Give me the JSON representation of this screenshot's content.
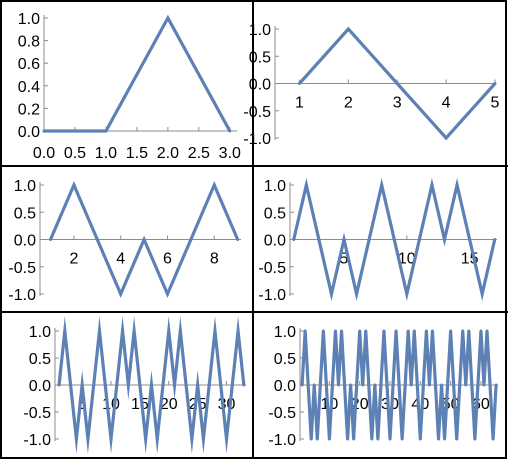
{
  "colors": {
    "line": "#5e81b5",
    "axis": "#8c8c8c",
    "border": "#000000",
    "text": "#000000"
  },
  "chart_data": [
    {
      "type": "line",
      "x": [
        0,
        1,
        2,
        3
      ],
      "y": [
        0,
        0,
        1,
        0
      ],
      "xlim": [
        0,
        3.1
      ],
      "ylim": [
        0,
        1
      ],
      "xticks": [
        0.0,
        0.5,
        1.0,
        1.5,
        2.0,
        2.5,
        3.0
      ],
      "xtick_labels": [
        "0.0",
        "0.5",
        "1.0",
        "1.5",
        "2.0",
        "2.5",
        "3.0"
      ],
      "yticks": [
        0.0,
        0.2,
        0.4,
        0.6,
        0.8,
        1.0
      ],
      "ytick_labels": [
        "0.0",
        "0.2",
        "0.4",
        "0.6",
        "0.8",
        "1.0"
      ]
    },
    {
      "type": "line",
      "x": [
        1,
        2,
        3,
        4,
        5
      ],
      "y": [
        0,
        1,
        0,
        -1,
        0
      ],
      "xlim": [
        0.5,
        5
      ],
      "ylim": [
        -1,
        1
      ],
      "xticks": [
        1,
        2,
        3,
        4,
        5
      ],
      "xtick_labels": [
        "1",
        "2",
        "3",
        "4",
        "5"
      ],
      "yticks": [
        -1.0,
        -0.5,
        0.0,
        0.5,
        1.0
      ],
      "ytick_labels": [
        "-1.0",
        "-0.5",
        "0.0",
        "0.5",
        "1.0"
      ]
    },
    {
      "type": "line",
      "x": [
        1,
        2,
        3,
        4,
        5,
        6,
        7,
        8,
        9
      ],
      "y": [
        0,
        1,
        0,
        -1,
        0,
        -1,
        0,
        1,
        0
      ],
      "xlim": [
        0.55,
        9.1
      ],
      "ylim": [
        -1,
        1
      ],
      "xticks": [
        2,
        4,
        6,
        8
      ],
      "xtick_labels": [
        "2",
        "4",
        "6",
        "8"
      ],
      "yticks": [
        -1.0,
        -0.5,
        0.0,
        0.5,
        1.0
      ],
      "ytick_labels": [
        "-1.0",
        "-0.5",
        "0.0",
        "0.5",
        "1.0"
      ]
    },
    {
      "type": "line",
      "x": [
        1,
        2,
        3,
        4,
        5,
        6,
        7,
        8,
        9,
        10,
        11,
        12,
        13,
        14,
        15,
        16,
        17
      ],
      "y": [
        0,
        1,
        0,
        -1,
        0,
        -1,
        0,
        1,
        0,
        -1,
        0,
        1,
        0,
        1,
        0,
        -1,
        0
      ],
      "xlim": [
        0.7,
        17.1
      ],
      "ylim": [
        -1,
        1
      ],
      "xticks": [
        5,
        10,
        15
      ],
      "xtick_labels": [
        "5",
        "10",
        "15"
      ],
      "yticks": [
        -1.0,
        -0.5,
        0.0,
        0.5,
        1.0
      ],
      "ytick_labels": [
        "-1.0",
        "-0.5",
        "0.0",
        "0.5",
        "1.0"
      ]
    },
    {
      "type": "line",
      "x": [
        1,
        2,
        3,
        4,
        5,
        6,
        7,
        8,
        9,
        10,
        11,
        12,
        13,
        14,
        15,
        16,
        17,
        18,
        19,
        20,
        21,
        22,
        23,
        24,
        25,
        26,
        27,
        28,
        29,
        30,
        31,
        32,
        33
      ],
      "y": [
        0,
        1,
        0,
        -1,
        0,
        -1,
        0,
        1,
        0,
        -1,
        0,
        1,
        0,
        1,
        0,
        -1,
        0,
        -1,
        0,
        1,
        0,
        1,
        0,
        -1,
        0,
        -1,
        0,
        1,
        0,
        -1,
        0,
        1,
        0
      ],
      "xlim": [
        0.3,
        33.2
      ],
      "ylim": [
        -1,
        1
      ],
      "xticks": [
        5,
        10,
        15,
        20,
        25,
        30
      ],
      "xtick_labels": [
        "5",
        "10",
        "15",
        "20",
        "25",
        "30"
      ],
      "yticks": [
        -1.0,
        -0.5,
        0.0,
        0.5,
        1.0
      ],
      "ytick_labels": [
        "-1.0",
        "-0.5",
        "0.0",
        "0.5",
        "1.0"
      ]
    },
    {
      "type": "line",
      "x": [
        1,
        2,
        3,
        4,
        5,
        6,
        7,
        8,
        9,
        10,
        11,
        12,
        13,
        14,
        15,
        16,
        17,
        18,
        19,
        20,
        21,
        22,
        23,
        24,
        25,
        26,
        27,
        28,
        29,
        30,
        31,
        32,
        33,
        34,
        35,
        36,
        37,
        38,
        39,
        40,
        41,
        42,
        43,
        44,
        45,
        46,
        47,
        48,
        49,
        50,
        51,
        52,
        53,
        54,
        55,
        56,
        57,
        58,
        59,
        60,
        61,
        62,
        63,
        64,
        65
      ],
      "y": [
        0,
        1,
        0,
        -1,
        0,
        -1,
        0,
        1,
        0,
        -1,
        0,
        1,
        0,
        1,
        0,
        -1,
        0,
        -1,
        0,
        1,
        0,
        1,
        0,
        -1,
        0,
        -1,
        0,
        1,
        0,
        -1,
        0,
        1,
        0,
        -1,
        0,
        1,
        0,
        1,
        0,
        -1,
        0,
        1,
        0,
        1,
        0,
        -1,
        0,
        -1,
        0,
        1,
        0,
        -1,
        0,
        1,
        0,
        1,
        0,
        -1,
        0,
        1,
        0,
        1,
        0,
        -1,
        0
      ],
      "xlim": [
        0.3,
        65.3
      ],
      "ylim": [
        -1,
        1
      ],
      "xticks": [
        10,
        20,
        30,
        40,
        50,
        60
      ],
      "xtick_labels": [
        "10",
        "20",
        "30",
        "40",
        "50",
        "60"
      ],
      "yticks": [
        -1.0,
        -0.5,
        0.0,
        0.5,
        1.0
      ],
      "ytick_labels": [
        "-1.0",
        "-0.5",
        "0.0",
        "0.5",
        "1.0"
      ]
    }
  ]
}
